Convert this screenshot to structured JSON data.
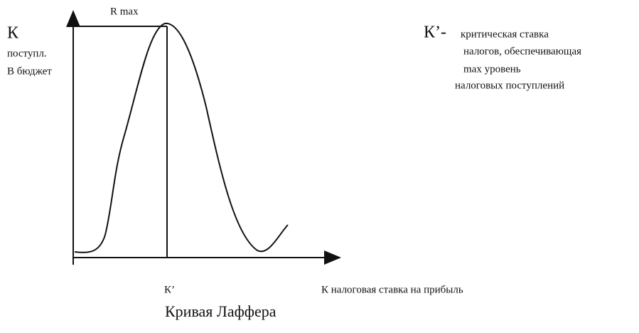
{
  "diagram": {
    "title": "Кривая Лаффера",
    "r_max": "R max",
    "y_axis": {
      "symbol": "К",
      "line1": "поступл.",
      "line2": "В бюджет"
    },
    "x_axis": {
      "k_prime": "К’",
      "label": "К  налоговая ставка на прибыль"
    },
    "legend": {
      "symbol": "К’-",
      "line1": "критическая ставка",
      "line2": "налогов, обеспечивающая",
      "line3": "max уровень",
      "line4": "налоговых поступлений"
    }
  }
}
